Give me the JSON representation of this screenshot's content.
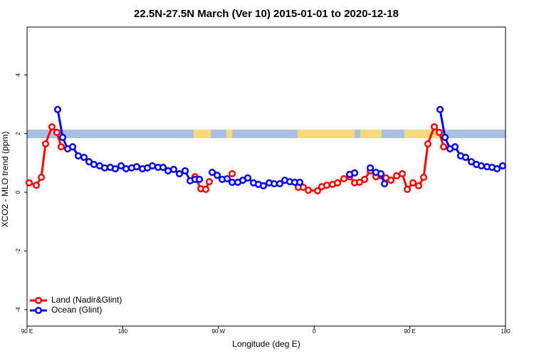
{
  "chart_data": {
    "type": "line",
    "title": "22.5N-27.5N March (Ver 10)   2015-01-01 to 2020-12-18",
    "x_label": "Longitude (deg E)",
    "y_label": "XCO2 - MLO trend (ppm)",
    "xlim": [
      90,
      540
    ],
    "ylim": [
      -4.56,
      5.63
    ],
    "xticks": [
      {
        "value": 90,
        "label": "90 E"
      },
      {
        "value": 180,
        "label": "180"
      },
      {
        "value": 270,
        "label": "90 W"
      },
      {
        "value": 360,
        "label": "0"
      },
      {
        "value": 450,
        "label": "90 E"
      },
      {
        "value": 540,
        "label": "180"
      }
    ],
    "yticks": [
      -4,
      -2,
      0,
      2,
      4
    ],
    "legend": "bottom-left",
    "series": [
      {
        "name": "Land (Nadir&Glint)",
        "color": "#ff0000",
        "x": [
          92.0,
          98.7,
          103.4,
          107.4,
          113.4,
          118.1,
          122.1,
          null,
          248.0,
          253.4,
          258.1,
          261.4,
          null,
          282.9,
          null,
          345.1,
          349.8,
          354.5,
          363.2,
          367.2,
          371.9,
          377.3,
          382.0,
          388.0,
          393.4,
          398.1,
          402.7,
          407.4,
          412.8,
          418.1,
          422.8,
          427.5,
          432.2,
          437.6,
          442.9,
          447.6,
          453.0,
          458.3,
          463.0,
          467.0,
          473.0,
          477.7,
          481.8
        ],
        "values": [
          0.32,
          0.24,
          0.51,
          1.65,
          2.23,
          2.04,
          1.55,
          null,
          0.53,
          0.12,
          0.1,
          0.36,
          null,
          0.63,
          null,
          0.17,
          0.17,
          0.07,
          0.05,
          0.19,
          0.24,
          0.27,
          0.32,
          0.46,
          0.53,
          0.32,
          0.34,
          0.44,
          0.73,
          0.53,
          0.56,
          0.49,
          0.41,
          0.56,
          0.63,
          0.1,
          0.32,
          0.22,
          0.51,
          1.65,
          2.23,
          2.04,
          1.55
        ]
      },
      {
        "name": "Ocean (Glint)",
        "color": "#0000ff",
        "x": [
          118.8,
          123.5,
          128.2,
          132.9,
          138.2,
          143.6,
          148.3,
          152.9,
          158.3,
          163.0,
          168.3,
          173.0,
          178.4,
          183.1,
          188.4,
          193.1,
          198.5,
          203.2,
          207.9,
          213.2,
          217.9,
          222.6,
          227.9,
          233.3,
          238.7,
          243.4,
          248.0,
          252.1,
          null,
          264.1,
          268.8,
          273.5,
          278.2,
          282.9,
          288.2,
          292.9,
          297.6,
          303.0,
          307.6,
          312.3,
          317.7,
          322.4,
          327.7,
          332.4,
          337.1,
          341.8,
          346.5,
          null,
          393.4,
          398.1,
          null,
          412.8,
          418.1,
          422.8,
          426.2,
          null,
          478.4,
          483.1,
          487.8,
          492.5,
          497.8,
          502.5,
          507.9,
          512.6,
          517.2,
          522.6,
          527.3,
          532.0,
          537.3
        ],
        "values": [
          2.82,
          1.87,
          1.48,
          1.55,
          1.24,
          1.19,
          1.04,
          0.95,
          0.9,
          0.83,
          0.85,
          0.8,
          0.9,
          0.8,
          0.83,
          0.87,
          0.8,
          0.83,
          0.9,
          0.85,
          0.85,
          0.73,
          0.78,
          0.63,
          0.73,
          0.39,
          0.44,
          0.44,
          null,
          0.68,
          0.58,
          0.44,
          0.46,
          0.34,
          0.34,
          0.41,
          0.49,
          0.32,
          0.27,
          0.22,
          0.32,
          0.29,
          0.29,
          0.41,
          0.36,
          0.34,
          0.34,
          null,
          0.61,
          0.66,
          null,
          0.83,
          0.68,
          0.63,
          0.29,
          null,
          2.82,
          1.87,
          1.48,
          1.55,
          1.24,
          1.19,
          1.04,
          0.95,
          0.9,
          0.87,
          0.85,
          0.8,
          0.9
        ]
      }
    ]
  }
}
